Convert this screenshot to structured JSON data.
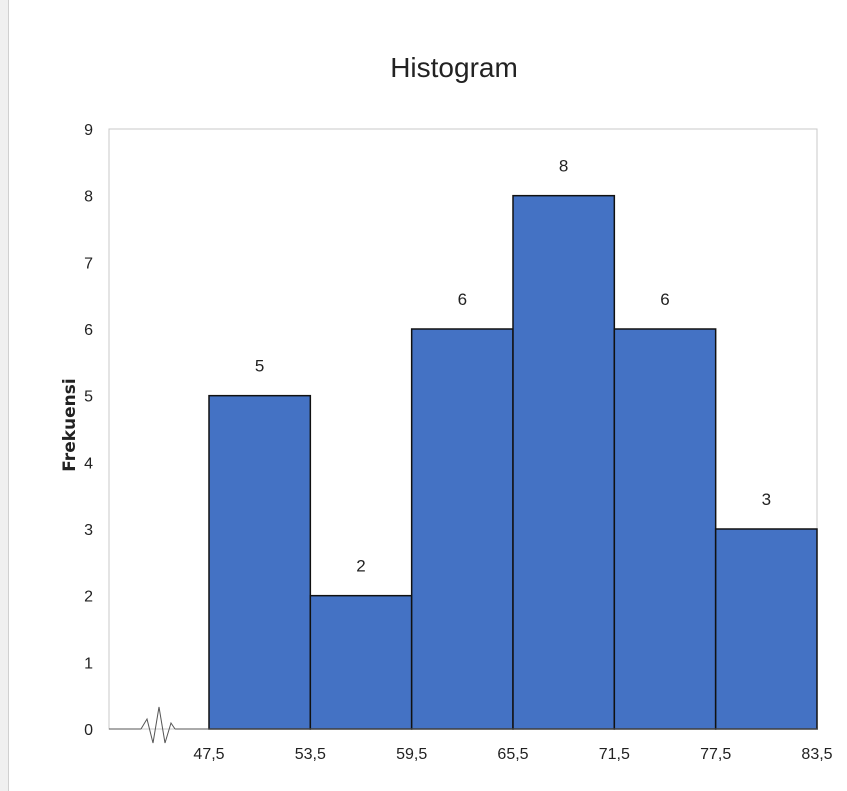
{
  "colors": {
    "bar": "#4472c4",
    "bar_stroke": "#111111",
    "axis": "#555555",
    "plot_border": "#c8c8c8"
  },
  "chart_data": {
    "type": "bar",
    "title": "Histogram",
    "xlabel": "",
    "ylabel": "Frekuensi",
    "bin_edges": [
      "47,5",
      "53,5",
      "59,5",
      "65,5",
      "71,5",
      "77,5",
      "83,5"
    ],
    "values": [
      5,
      2,
      6,
      8,
      6,
      3
    ],
    "data_labels": [
      "5",
      "2",
      "6",
      "8",
      "6",
      "3"
    ],
    "ylim": [
      0,
      9
    ],
    "yticks": [
      "0",
      "1",
      "2",
      "3",
      "4",
      "5",
      "6",
      "7",
      "8",
      "9"
    ],
    "axis_break": true,
    "grid": false
  }
}
